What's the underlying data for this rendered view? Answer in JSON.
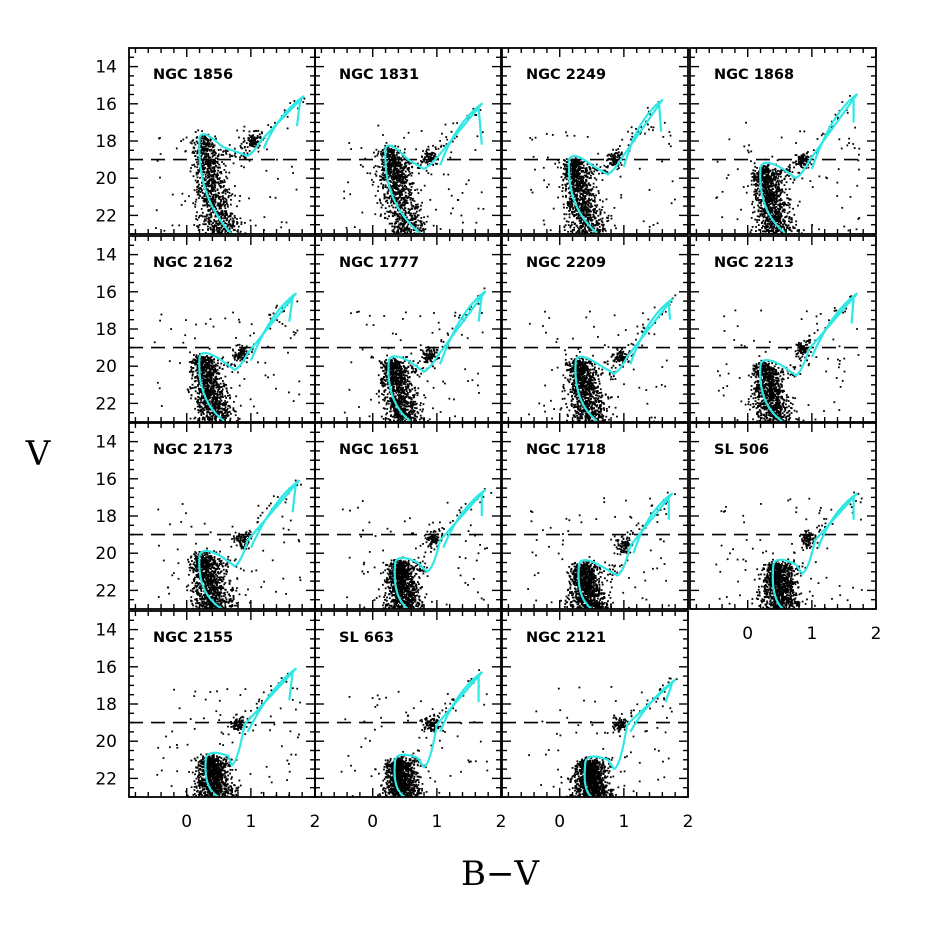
{
  "chart_data": {
    "type": "scatter",
    "figure": "grid of color-magnitude diagrams",
    "xlabel": "B−V",
    "ylabel": "V",
    "xlim": [
      -0.9,
      2.0
    ],
    "ylim": [
      23.0,
      13.0
    ],
    "y_ticks_labeled": [
      14,
      16,
      18,
      20,
      22
    ],
    "x_ticks_labeled": [
      0,
      1,
      2
    ],
    "reference_line_V": 19,
    "isochrone_color": "#2fe8e6",
    "point_color": "#000000",
    "panels": [
      {
        "name": "NGC 1856",
        "turnoff": {
          "bv": 0.2,
          "v": 17.8
        },
        "red_clump": {
          "bv": 1.05,
          "v": 18.0
        },
        "msto_v": 18.6,
        "tip": {
          "bv": 1.82,
          "v": 15.6
        },
        "agb_end": {
          "bv": 1.72,
          "v": 17.2
        },
        "ms_bottom": {
          "bv": 0.7,
          "v": 23.0
        }
      },
      {
        "name": "NGC 1831",
        "turnoff": {
          "bv": 0.2,
          "v": 18.4
        },
        "red_clump": {
          "bv": 0.9,
          "v": 18.9
        },
        "msto_v": 19.3,
        "tip": {
          "bv": 1.7,
          "v": 16.0
        },
        "agb_end": {
          "bv": 1.7,
          "v": 18.2
        },
        "ms_bottom": {
          "bv": 0.75,
          "v": 23.0
        }
      },
      {
        "name": "NGC 2249",
        "turnoff": {
          "bv": 0.15,
          "v": 19.0
        },
        "red_clump": {
          "bv": 0.85,
          "v": 19.0
        },
        "msto_v": 19.6,
        "tip": {
          "bv": 1.6,
          "v": 15.8
        },
        "agb_end": {
          "bv": 1.58,
          "v": 17.5
        },
        "ms_bottom": {
          "bv": 0.6,
          "v": 23.0
        }
      },
      {
        "name": "NGC 1868",
        "turnoff": {
          "bv": 0.2,
          "v": 19.4
        },
        "red_clump": {
          "bv": 0.85,
          "v": 19.1
        },
        "msto_v": 19.8,
        "tip": {
          "bv": 1.7,
          "v": 15.5
        },
        "agb_end": {
          "bv": 1.65,
          "v": 17.0
        },
        "ms_bottom": {
          "bv": 0.6,
          "v": 23.0
        }
      },
      {
        "name": "NGC 2162",
        "turnoff": {
          "bv": 0.2,
          "v": 19.5
        },
        "red_clump": {
          "bv": 0.85,
          "v": 19.3
        },
        "msto_v": 20.0,
        "tip": {
          "bv": 1.7,
          "v": 16.1
        },
        "agb_end": {
          "bv": 1.6,
          "v": 17.6
        },
        "ms_bottom": {
          "bv": 0.6,
          "v": 23.0
        }
      },
      {
        "name": "NGC 1777",
        "turnoff": {
          "bv": 0.25,
          "v": 19.7
        },
        "red_clump": {
          "bv": 0.9,
          "v": 19.5
        },
        "msto_v": 20.1,
        "tip": {
          "bv": 1.75,
          "v": 16.0
        },
        "agb_end": {
          "bv": 1.65,
          "v": 17.6
        },
        "ms_bottom": {
          "bv": 0.6,
          "v": 23.0
        }
      },
      {
        "name": "NGC 2209",
        "turnoff": {
          "bv": 0.25,
          "v": 19.7
        },
        "red_clump": {
          "bv": 0.95,
          "v": 19.5
        },
        "msto_v": 20.2,
        "tip": {
          "bv": 1.75,
          "v": 16.4
        },
        "agb_end": {
          "bv": 1.72,
          "v": 17.5
        },
        "ms_bottom": {
          "bv": 0.6,
          "v": 23.0
        }
      },
      {
        "name": "NGC 2213",
        "turnoff": {
          "bv": 0.2,
          "v": 19.9
        },
        "red_clump": {
          "bv": 0.85,
          "v": 19.1
        },
        "msto_v": 20.3,
        "tip": {
          "bv": 1.7,
          "v": 16.1
        },
        "agb_end": {
          "bv": 1.62,
          "v": 17.7
        },
        "ms_bottom": {
          "bv": 0.55,
          "v": 23.0
        }
      },
      {
        "name": "NGC 2173",
        "turnoff": {
          "bv": 0.2,
          "v": 20.1
        },
        "red_clump": {
          "bv": 0.85,
          "v": 19.3
        },
        "msto_v": 20.5,
        "tip": {
          "bv": 1.75,
          "v": 16.1
        },
        "agb_end": {
          "bv": 1.65,
          "v": 17.8
        },
        "ms_bottom": {
          "bv": 0.55,
          "v": 23.0
        }
      },
      {
        "name": "NGC 1651",
        "turnoff": {
          "bv": 0.35,
          "v": 20.5
        },
        "red_clump": {
          "bv": 0.95,
          "v": 19.3
        },
        "msto_v": 20.8,
        "tip": {
          "bv": 1.75,
          "v": 16.6
        },
        "agb_end": {
          "bv": 1.7,
          "v": 18.0
        },
        "ms_bottom": {
          "bv": 0.55,
          "v": 23.0
        }
      },
      {
        "name": "NGC 1718",
        "turnoff": {
          "bv": 0.3,
          "v": 20.6
        },
        "red_clump": {
          "bv": 1.0,
          "v": 19.6
        },
        "msto_v": 21.0,
        "tip": {
          "bv": 1.75,
          "v": 16.8
        },
        "agb_end": {
          "bv": 1.7,
          "v": 18.2
        },
        "ms_bottom": {
          "bv": 0.5,
          "v": 23.0
        }
      },
      {
        "name": "SL 506",
        "turnoff": {
          "bv": 0.4,
          "v": 20.6
        },
        "red_clump": {
          "bv": 0.95,
          "v": 19.3
        },
        "msto_v": 20.9,
        "tip": {
          "bv": 1.7,
          "v": 16.8
        },
        "agb_end": {
          "bv": 1.65,
          "v": 18.2
        },
        "ms_bottom": {
          "bv": 0.55,
          "v": 23.0
        }
      },
      {
        "name": "NGC 2155",
        "turnoff": {
          "bv": 0.3,
          "v": 20.9
        },
        "red_clump": {
          "bv": 0.8,
          "v": 19.1
        },
        "msto_v": 21.1,
        "tip": {
          "bv": 1.7,
          "v": 16.1
        },
        "agb_end": {
          "bv": 1.6,
          "v": 17.8
        },
        "ms_bottom": {
          "bv": 0.5,
          "v": 23.0
        }
      },
      {
        "name": "SL 663",
        "turnoff": {
          "bv": 0.35,
          "v": 21.0
        },
        "red_clump": {
          "bv": 0.9,
          "v": 19.1
        },
        "msto_v": 21.2,
        "tip": {
          "bv": 1.7,
          "v": 16.3
        },
        "agb_end": {
          "bv": 1.65,
          "v": 17.9
        },
        "ms_bottom": {
          "bv": 0.5,
          "v": 23.0
        }
      },
      {
        "name": "NGC 2121",
        "turnoff": {
          "bv": 0.4,
          "v": 21.1
        },
        "red_clump": {
          "bv": 0.95,
          "v": 19.1
        },
        "msto_v": 21.3,
        "tip": {
          "bv": 1.8,
          "v": 16.7
        },
        "agb_end": {
          "bv": 1.65,
          "v": 17.9
        },
        "ms_bottom": {
          "bv": 0.5,
          "v": 23.0
        }
      }
    ]
  }
}
